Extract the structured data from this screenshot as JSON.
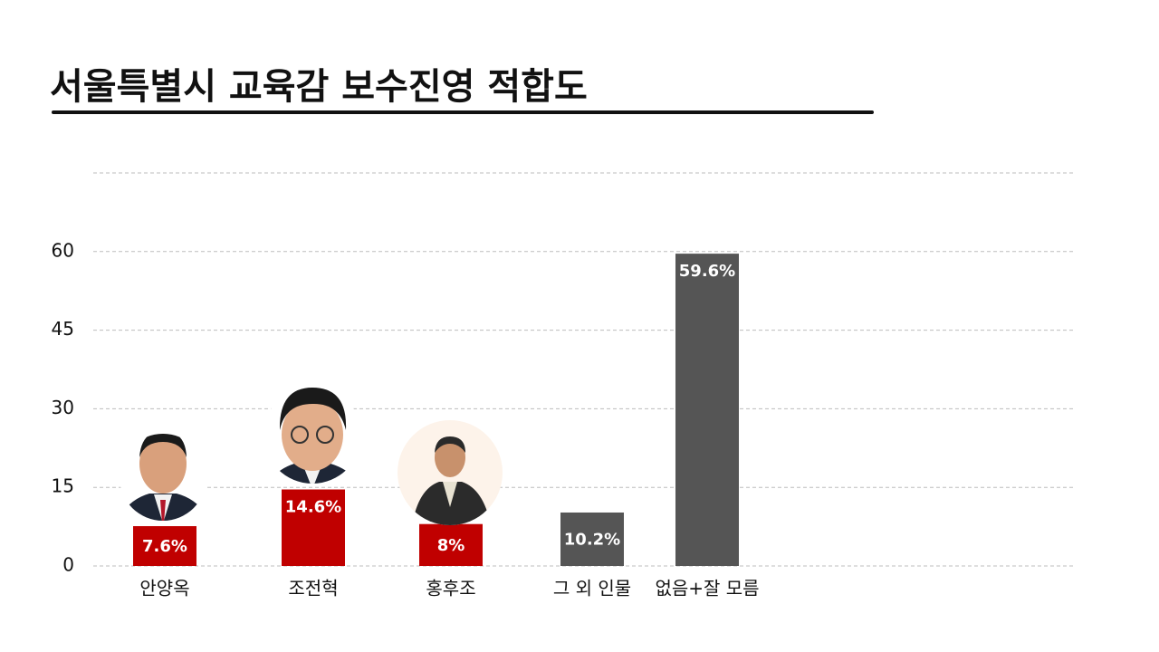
{
  "chart_data": {
    "type": "bar",
    "title": "서울특별시 교육감  보수진영 적합도",
    "categories": [
      "안양옥",
      "조전혁",
      "홍후조",
      "그 외 인물",
      "없음+잘 모름"
    ],
    "values": [
      7.6,
      14.6,
      8,
      10.2,
      59.6
    ],
    "value_labels": [
      "7.6%",
      "14.6%",
      "8%",
      "10.2%",
      "59.6%"
    ],
    "colors": [
      "#c00000",
      "#c00000",
      "#c00000",
      "#555555",
      "#555555"
    ],
    "ylim": [
      0,
      75
    ],
    "yticks": [
      0,
      15,
      30,
      45,
      60
    ],
    "grid": true
  }
}
